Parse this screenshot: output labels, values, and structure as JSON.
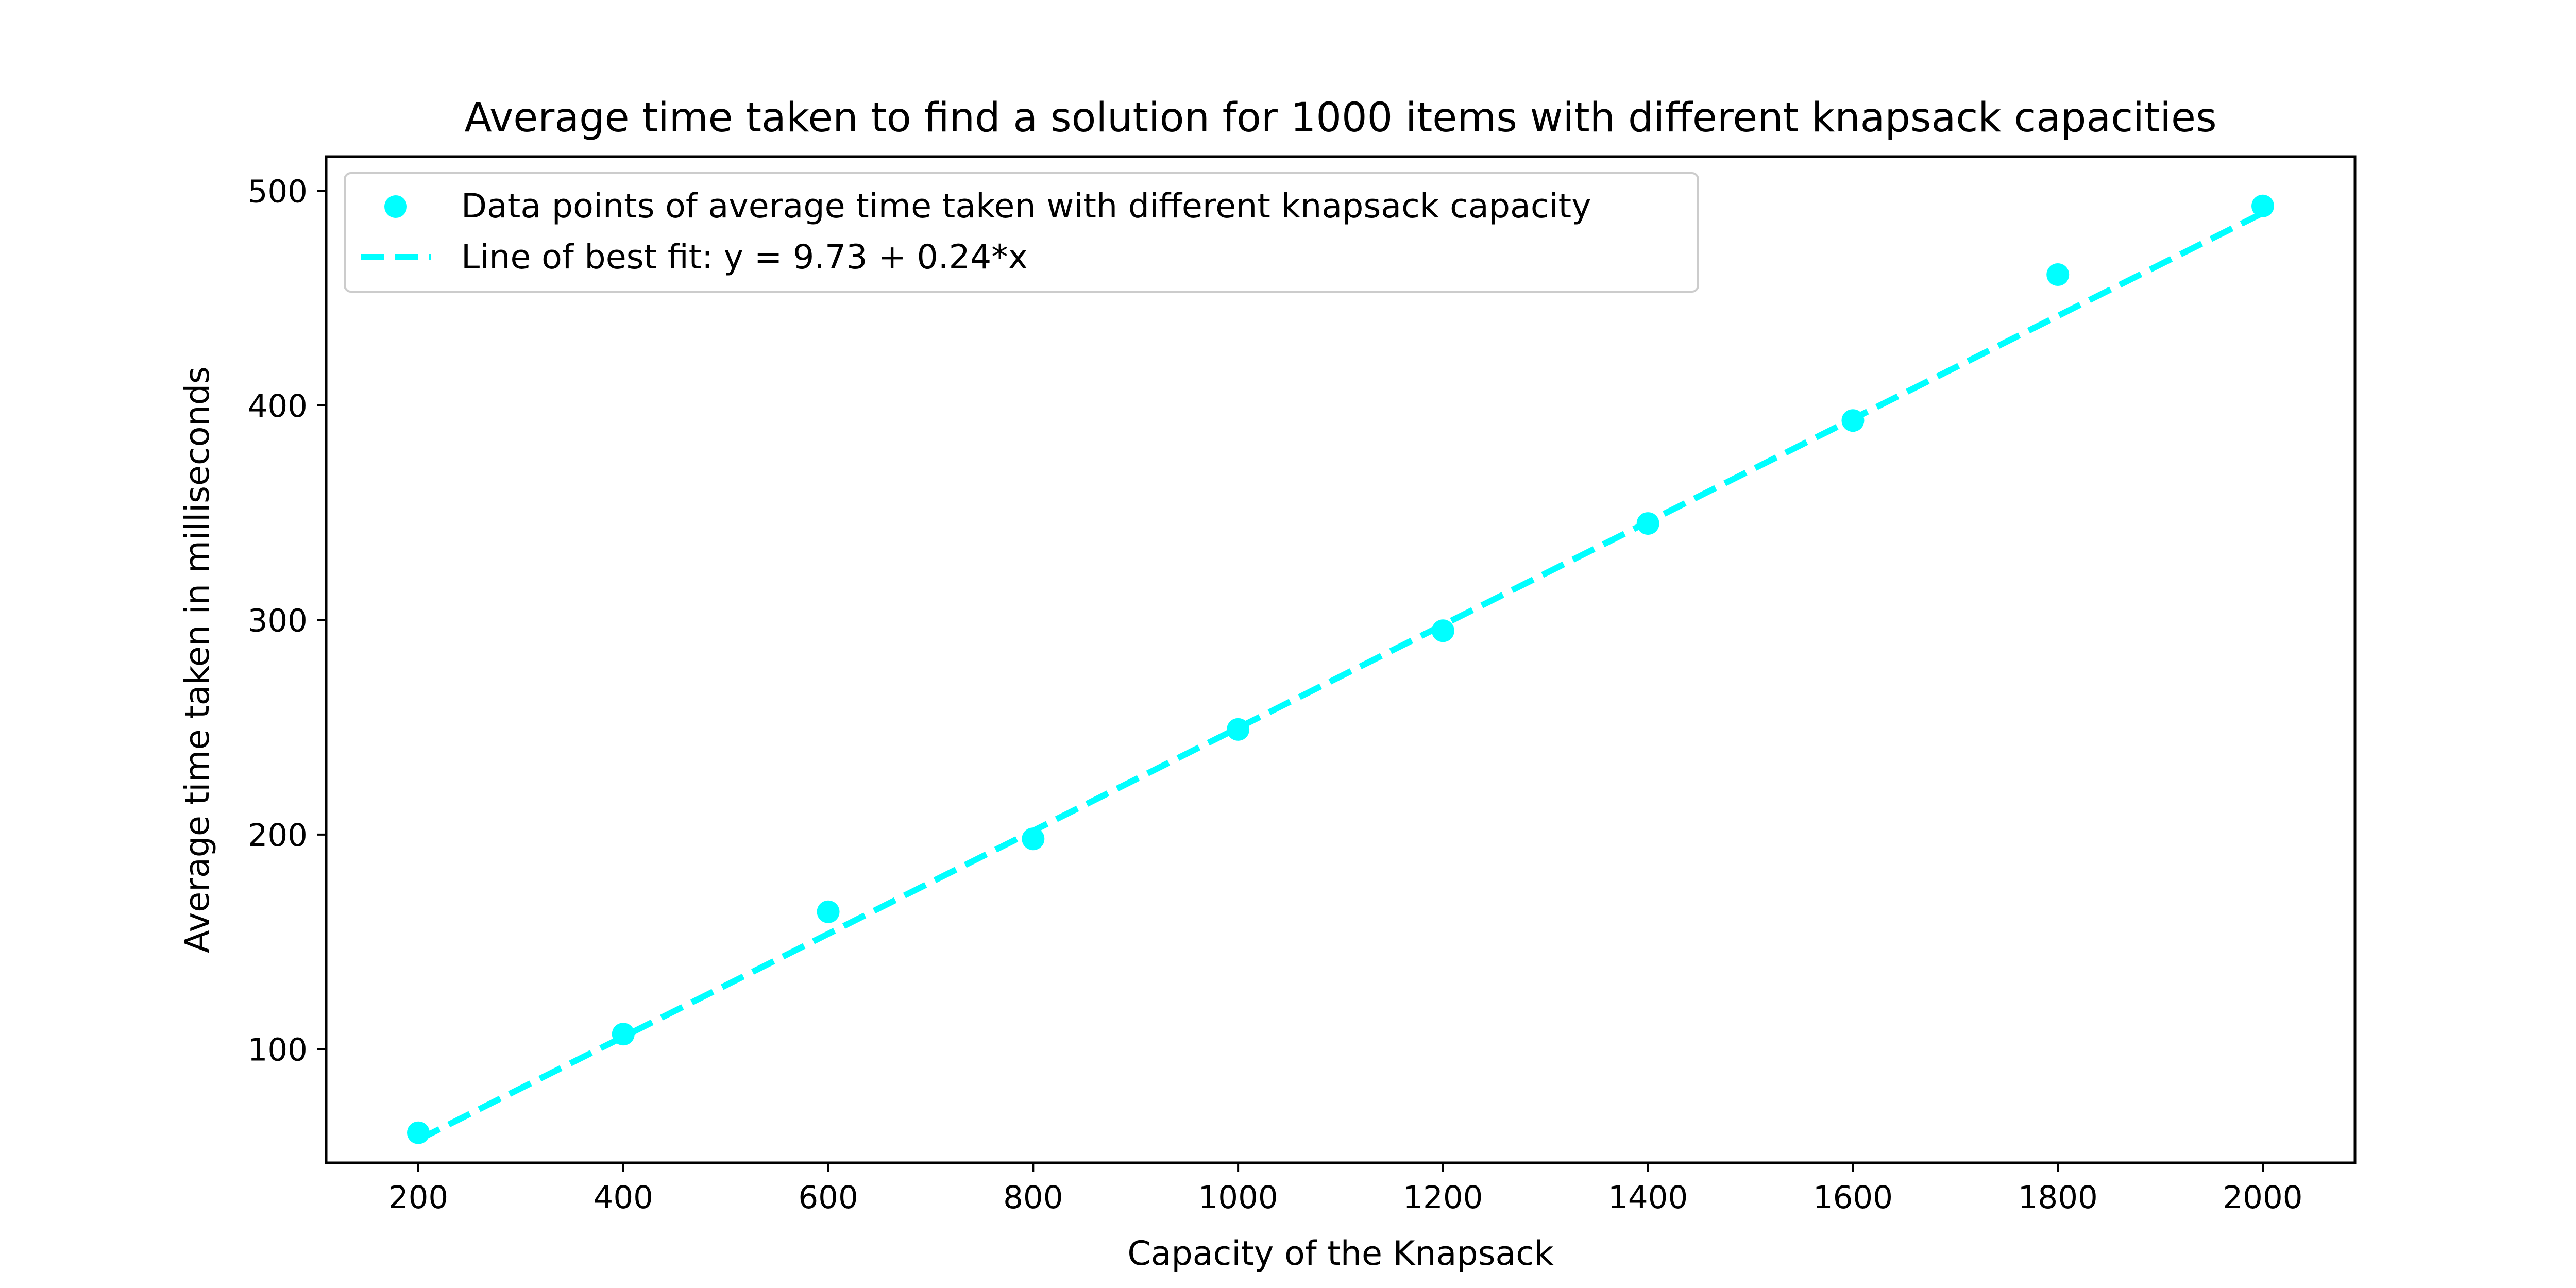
{
  "chart_data": {
    "type": "scatter",
    "title": "Average time taken to find a solution for 1000 items with different knapsack capacities",
    "xlabel": "Capacity of the Knapsack",
    "ylabel": "Average time taken in milliseconds",
    "xlim": [
      110,
      2090
    ],
    "ylim": [
      47,
      516
    ],
    "xticks": [
      200,
      400,
      600,
      800,
      1000,
      1200,
      1400,
      1600,
      1800,
      2000
    ],
    "yticks": [
      100,
      200,
      300,
      400,
      500
    ],
    "grid": false,
    "legend_position": "upper-left",
    "colors": {
      "points": "#00ffff",
      "fit_line": "#00ffff",
      "axes": "#000000"
    },
    "series": [
      {
        "name": "Data points of average time taken with different knapsack capacity",
        "type": "scatter",
        "x": [
          200,
          400,
          600,
          800,
          1000,
          1200,
          1400,
          1600,
          1800,
          2000
        ],
        "y": [
          61,
          107,
          164,
          198,
          249,
          295,
          345,
          393,
          461,
          493
        ]
      },
      {
        "name": "Line of best fit: y = 9.73 + 0.24*x",
        "type": "line",
        "style": "dashed",
        "intercept": 9.73,
        "slope": 0.24,
        "x": [
          200,
          2000
        ],
        "y": [
          57.73,
          489.73
        ]
      }
    ]
  }
}
